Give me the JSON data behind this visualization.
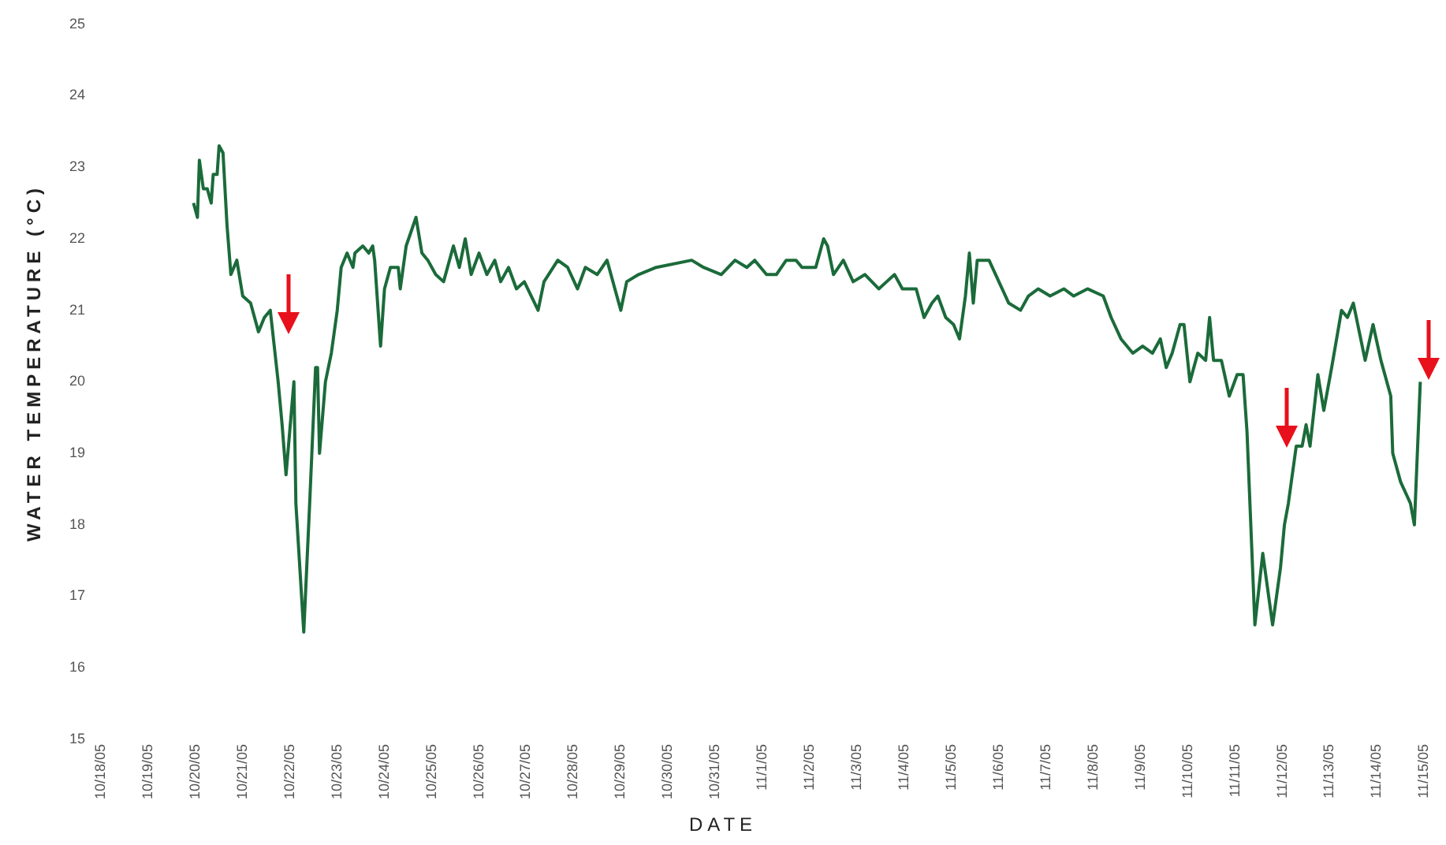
{
  "chart_data": {
    "type": "line",
    "xlabel": "DATE",
    "ylabel": "WATER TEMPERATURE (°C)",
    "xlim": [
      "--10-18",
      "--11-15"
    ],
    "ylim": [
      15,
      25
    ],
    "yticks": [
      15,
      16,
      17,
      18,
      19,
      20,
      21,
      22,
      23,
      24,
      25
    ],
    "xticks": [
      {
        "value": "--10-18",
        "label": "10/18/05"
      },
      {
        "value": "--10-19",
        "label": "10/19/05"
      },
      {
        "value": "--10-20",
        "label": "10/20/05"
      },
      {
        "value": "--10-21",
        "label": "10/21/05"
      },
      {
        "value": "--10-22",
        "label": "10/22/05"
      },
      {
        "value": "--10-23",
        "label": "10/23/05"
      },
      {
        "value": "--10-24",
        "label": "10/24/05"
      },
      {
        "value": "--10-25",
        "label": "10/25/05"
      },
      {
        "value": "--10-26",
        "label": "10/26/05"
      },
      {
        "value": "--10-27",
        "label": "10/27/05"
      },
      {
        "value": "--10-28",
        "label": "10/28/05"
      },
      {
        "value": "--10-29",
        "label": "10/29/05"
      },
      {
        "value": "--10-30",
        "label": "10/30/05"
      },
      {
        "value": "--10-31",
        "label": "10/31/05"
      },
      {
        "value": "--11-01",
        "label": "11/1/05"
      },
      {
        "value": "--11-02",
        "label": "11/2/05"
      },
      {
        "value": "--11-03",
        "label": "11/3/05"
      },
      {
        "value": "--11-04",
        "label": "11/4/05"
      },
      {
        "value": "--11-05",
        "label": "11/5/05"
      },
      {
        "value": "--11-06",
        "label": "11/6/05"
      },
      {
        "value": "--11-07",
        "label": "11/7/05"
      },
      {
        "value": "--11-08",
        "label": "11/8/05"
      },
      {
        "value": "--11-09",
        "label": "11/9/05"
      },
      {
        "value": "--11-10",
        "label": "11/10/05"
      },
      {
        "value": "--11-11",
        "label": "11/11/05"
      },
      {
        "value": "--11-12",
        "label": "11/12/05"
      },
      {
        "value": "--11-13",
        "label": "11/13/05"
      },
      {
        "value": "--11-14",
        "label": "11/14/05"
      },
      {
        "value": "--11-15",
        "label": "11/15/05"
      }
    ],
    "grid": false,
    "legend": false,
    "marker": "none",
    "line_style": "solid",
    "series": [
      {
        "color": "#1b6b3a",
        "x": [
          "--10-19T23:00",
          "--10-20T01:00",
          "--10-20T02:00",
          "--10-20T04:00",
          "--10-20T06:00",
          "--10-20T08:00",
          "--10-20T09:00",
          "--10-20T11:00",
          "--10-20T12:00",
          "--10-20T14:00",
          "--10-20T16:00",
          "--10-20T18:00",
          "--10-20T21:00",
          "--10-21T00:00",
          "--10-21T04:00",
          "--10-21T08:00",
          "--10-21T11:00",
          "--10-21T14:00",
          "--10-21T18:00",
          "--10-21T20:00",
          "--10-21T22:00",
          "--10-22T02:00",
          "--10-22T03:00",
          "--10-22T07:00",
          "--10-22T10:00",
          "--10-22T13:00",
          "--10-22T14:00",
          "--10-22T15:00",
          "--10-22T18:00",
          "--10-22T21:00",
          "--10-23T00:00",
          "--10-23T02:00",
          "--10-23T05:00",
          "--10-23T08:00",
          "--10-23T09:00",
          "--10-23T13:00",
          "--10-23T16:00",
          "--10-23T18:00",
          "--10-23T19:00",
          "--10-23T22:00",
          "--10-24T00:00",
          "--10-24T03:00",
          "--10-24T07:00",
          "--10-24T08:00",
          "--10-24T11:00",
          "--10-24T16:00",
          "--10-24T19:00",
          "--10-24T22:00",
          "--10-25T02:00",
          "--10-25T06:00",
          "--10-25T11:00",
          "--10-25T14:00",
          "--10-25T17:00",
          "--10-25T20:00",
          "--10-26T00:00",
          "--10-26T04:00",
          "--10-26T08:00",
          "--10-26T11:00",
          "--10-26T15:00",
          "--10-26T19:00",
          "--10-26T23:00",
          "--10-27T06:00",
          "--10-27T09:00",
          "--10-27T16:00",
          "--10-27T21:00",
          "--10-28T02:00",
          "--10-28T06:00",
          "--10-28T12:00",
          "--10-28T17:00",
          "--10-28T21:00",
          "--10-29T00:00",
          "--10-29T03:00",
          "--10-29T09:00",
          "--10-29T18:00",
          "--10-30T12:00",
          "--10-30T18:00",
          "--10-31T03:00",
          "--10-31T10:00",
          "--10-31T16:00",
          "--10-31T20:00",
          "--11-01T02:00",
          "--11-01T07:00",
          "--11-01T12:00",
          "--11-01T17:00",
          "--11-01T20:00",
          "--11-02T03:00",
          "--11-02T07:00",
          "--11-02T09:00",
          "--11-02T12:00",
          "--11-02T17:00",
          "--11-02T22:00",
          "--11-03T04:00",
          "--11-03T11:00",
          "--11-03T15:00",
          "--11-03T19:00",
          "--11-03T23:00",
          "--11-04T06:00",
          "--11-04T10:00",
          "--11-04T14:00",
          "--11-04T17:00",
          "--11-04T21:00",
          "--11-05T01:00",
          "--11-05T04:00",
          "--11-05T07:00",
          "--11-05T09:00",
          "--11-05T11:00",
          "--11-05T13:00",
          "--11-05T19:00",
          "--11-06T00:00",
          "--11-06T05:00",
          "--11-06T11:00",
          "--11-06T15:00",
          "--11-06T20:00",
          "--11-07T02:00",
          "--11-07T09:00",
          "--11-07T14:00",
          "--11-07T21:00",
          "--11-08T05:00",
          "--11-08T09:00",
          "--11-08T14:00",
          "--11-08T20:00",
          "--11-09T01:00",
          "--11-09T06:00",
          "--11-09T10:00",
          "--11-09T13:00",
          "--11-09T16:00",
          "--11-09T20:00",
          "--11-09T22:00",
          "--11-10T01:00",
          "--11-10T05:00",
          "--11-10T09:00",
          "--11-10T11:00",
          "--11-10T13:00",
          "--11-10T17:00",
          "--11-10T21:00",
          "--11-11T01:00",
          "--11-11T04:00",
          "--11-11T06:00",
          "--11-11T10:00",
          "--11-11T14:00",
          "--11-11T19:00",
          "--11-11T23:00",
          "--11-12T01:00",
          "--11-12T03:00",
          "--11-12T07:00",
          "--11-12T10:00",
          "--11-12T12:00",
          "--11-12T14:00",
          "--11-12T18:00",
          "--11-12T21:00",
          "--11-13T01:00",
          "--11-13T06:00",
          "--11-13T09:00",
          "--11-13T12:00",
          "--11-13T15:00",
          "--11-13T18:00",
          "--11-13T22:00",
          "--11-14T02:00",
          "--11-14T04:00",
          "--11-14T07:00",
          "--11-14T08:00",
          "--11-14T12:00",
          "--11-14T17:00",
          "--11-14T19:00",
          "--11-14T22:00"
        ],
        "values": [
          22.5,
          22.3,
          23.1,
          22.7,
          22.7,
          22.5,
          22.9,
          22.9,
          23.3,
          23.2,
          22.2,
          21.5,
          21.7,
          21.2,
          21.1,
          20.7,
          20.9,
          21.0,
          20.0,
          19.4,
          18.7,
          20.0,
          18.3,
          16.5,
          18.3,
          20.2,
          20.2,
          19.0,
          20.0,
          20.4,
          21.0,
          21.6,
          21.8,
          21.6,
          21.8,
          21.9,
          21.8,
          21.9,
          21.7,
          20.5,
          21.3,
          21.6,
          21.6,
          21.3,
          21.9,
          22.3,
          21.8,
          21.7,
          21.5,
          21.4,
          21.9,
          21.6,
          22.0,
          21.5,
          21.8,
          21.5,
          21.7,
          21.4,
          21.6,
          21.3,
          21.4,
          21.0,
          21.4,
          21.7,
          21.6,
          21.3,
          21.6,
          21.5,
          21.7,
          21.3,
          21.0,
          21.4,
          21.5,
          21.6,
          21.7,
          21.6,
          21.5,
          21.7,
          21.6,
          21.7,
          21.5,
          21.5,
          21.7,
          21.7,
          21.6,
          21.6,
          22.0,
          21.9,
          21.5,
          21.7,
          21.4,
          21.5,
          21.3,
          21.4,
          21.5,
          21.3,
          21.3,
          20.9,
          21.1,
          21.2,
          20.9,
          20.8,
          20.6,
          21.2,
          21.8,
          21.1,
          21.7,
          21.7,
          21.4,
          21.1,
          21.0,
          21.2,
          21.3,
          21.2,
          21.3,
          21.2,
          21.3,
          21.2,
          20.9,
          20.6,
          20.4,
          20.5,
          20.4,
          20.6,
          20.2,
          20.4,
          20.8,
          20.8,
          20.0,
          20.4,
          20.3,
          20.9,
          20.3,
          20.3,
          19.8,
          20.1,
          20.1,
          19.3,
          16.6,
          17.6,
          16.6,
          17.4,
          18.0,
          18.3,
          19.1,
          19.1,
          19.4,
          19.1,
          20.1,
          19.6,
          20.2,
          21.0,
          20.9,
          21.1,
          20.7,
          20.3,
          20.8,
          20.3,
          20.1,
          19.8,
          19.0,
          18.6,
          18.3,
          18.0,
          20.0
        ]
      }
    ]
  }
}
